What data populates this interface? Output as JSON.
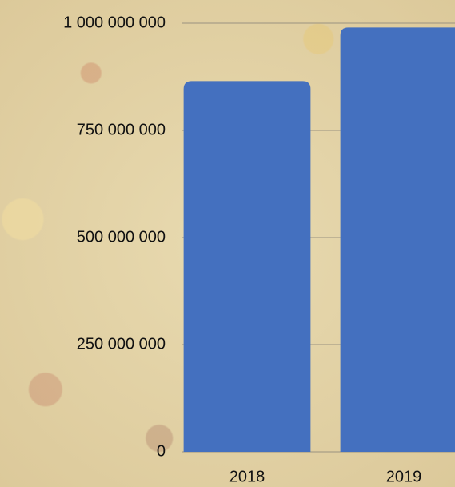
{
  "chart_data": {
    "type": "bar",
    "categories": [
      "2018",
      "2019"
    ],
    "values": [
      865000000,
      990000000
    ],
    "color": "#4470bf",
    "ylim": [
      0,
      1000000000
    ],
    "yticks": [
      0,
      {
        "value": 250000000,
        "label": "250 000 000"
      },
      {
        "value": 500000000,
        "label": "500 000 000"
      },
      {
        "value": 750000000,
        "label": "750 000 000"
      },
      {
        "value": 1000000000,
        "label": "1 000 000 000"
      }
    ],
    "grid": true
  }
}
